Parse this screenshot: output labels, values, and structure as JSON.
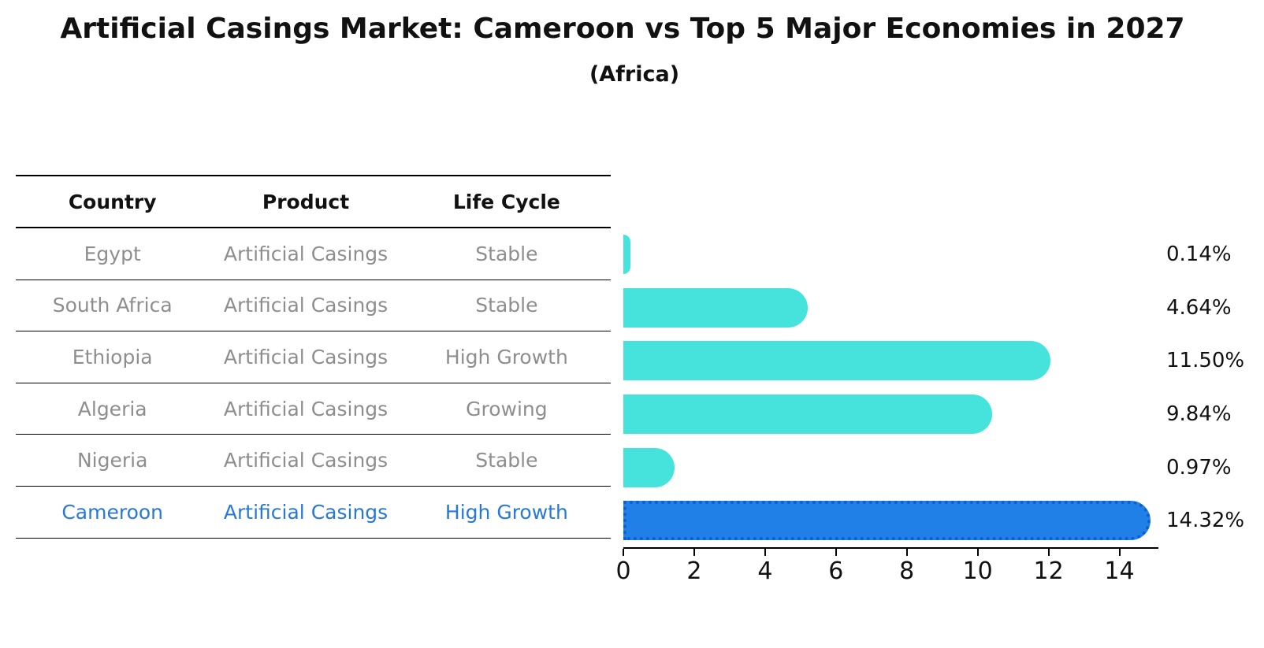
{
  "title": "Artificial Casings Market: Cameroon vs Top 5 Major Economies in 2027",
  "subtitle": "(Africa)",
  "table": {
    "headers": [
      "Country",
      "Product",
      "Life Cycle"
    ],
    "rows": [
      {
        "country": "Egypt",
        "product": "Artificial Casings",
        "life_cycle": "Stable",
        "highlight": false
      },
      {
        "country": "South Africa",
        "product": "Artificial Casings",
        "life_cycle": "Stable",
        "highlight": false
      },
      {
        "country": "Ethiopia",
        "product": "Artificial Casings",
        "life_cycle": "High Growth",
        "highlight": false
      },
      {
        "country": "Algeria",
        "product": "Artificial Casings",
        "life_cycle": "Growing",
        "highlight": false
      },
      {
        "country": "Nigeria",
        "product": "Artificial Casings",
        "life_cycle": "Stable",
        "highlight": false
      },
      {
        "country": "Cameroon",
        "product": "Artificial Casings",
        "life_cycle": "High Growth",
        "highlight": true
      }
    ]
  },
  "chart_data": {
    "type": "bar",
    "orientation": "horizontal",
    "title": "Artificial Casings Market: Cameroon vs Top 5 Major Economies in 2027 (Africa)",
    "categories": [
      "Egypt",
      "South Africa",
      "Ethiopia",
      "Algeria",
      "Nigeria",
      "Cameroon"
    ],
    "values": [
      0.14,
      4.64,
      11.5,
      9.84,
      0.97,
      14.32
    ],
    "value_labels": [
      "0.14%",
      "4.64%",
      "11.50%",
      "9.84%",
      "0.97%",
      "14.32%"
    ],
    "unit": "%",
    "xlim": [
      0,
      15.1
    ],
    "xticks": [
      0,
      2,
      4,
      6,
      8,
      10,
      12,
      14
    ],
    "grid": false,
    "legend_position": "none",
    "highlight_index": 5,
    "bar_color": "#46E3DC",
    "highlight_color": "#2180E8"
  },
  "colors": {
    "background": "#ffffff",
    "header_text": "#111111",
    "row_text": "#8e8e8e",
    "highlight_text": "#2878d8",
    "axis": "#000000",
    "highlight_border": "#0d5ecf"
  }
}
